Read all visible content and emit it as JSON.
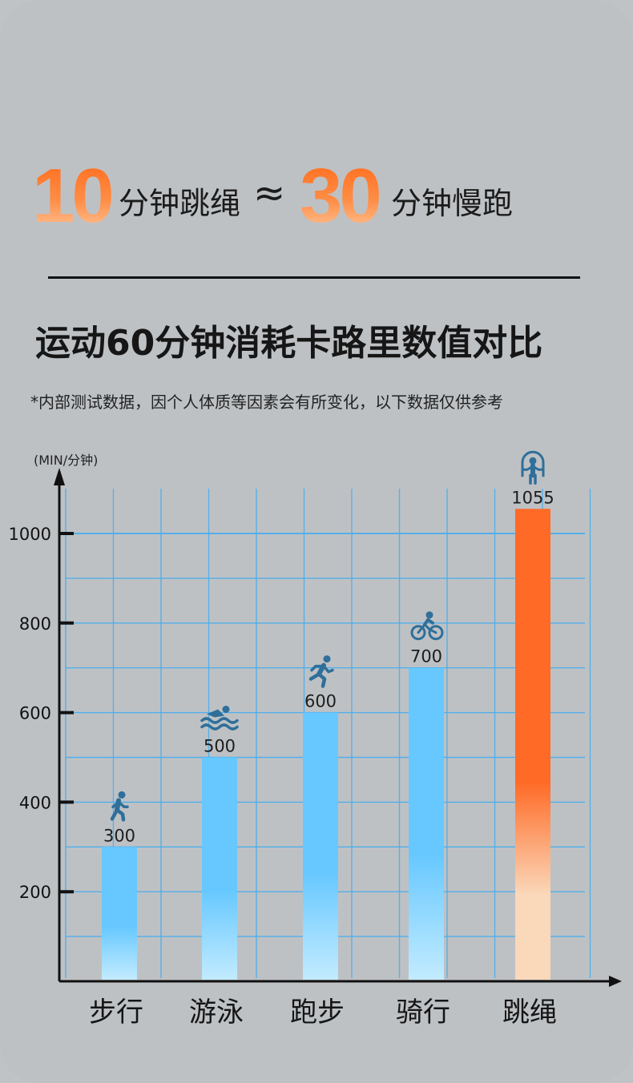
{
  "headline": {
    "num1": "10",
    "text1": "分钟跳绳",
    "approx": "≈",
    "num2": "30",
    "text2": "分钟慢跑"
  },
  "title": "运动60分钟消耗卡路里数值对比",
  "note": "*内部测试数据，因个人体质等因素会有所变化，以下数据仅供参考",
  "chart_data": {
    "type": "bar",
    "ylabel": "(MIN/分钟)",
    "ylim": [
      0,
      1100
    ],
    "yticks": [
      200,
      400,
      600,
      800,
      1000
    ],
    "grid": true,
    "categories": [
      "步行",
      "游泳",
      "跑步",
      "骑行",
      "跳绳"
    ],
    "values": [
      300,
      500,
      600,
      700,
      1055
    ],
    "labels": [
      "300",
      "500",
      "600",
      "700",
      "1055"
    ],
    "icons": [
      "walking-icon",
      "swimming-icon",
      "running-icon",
      "cycling-icon",
      "jump-rope-icon"
    ],
    "colors": {
      "blue_top": "#67c8ff",
      "blue_bottom": "#c2ebff",
      "orange_top": "#ff6a26",
      "orange_bottom": "#fad8ba",
      "grid": "#45aef0",
      "icon": "#2f6f9a"
    }
  }
}
